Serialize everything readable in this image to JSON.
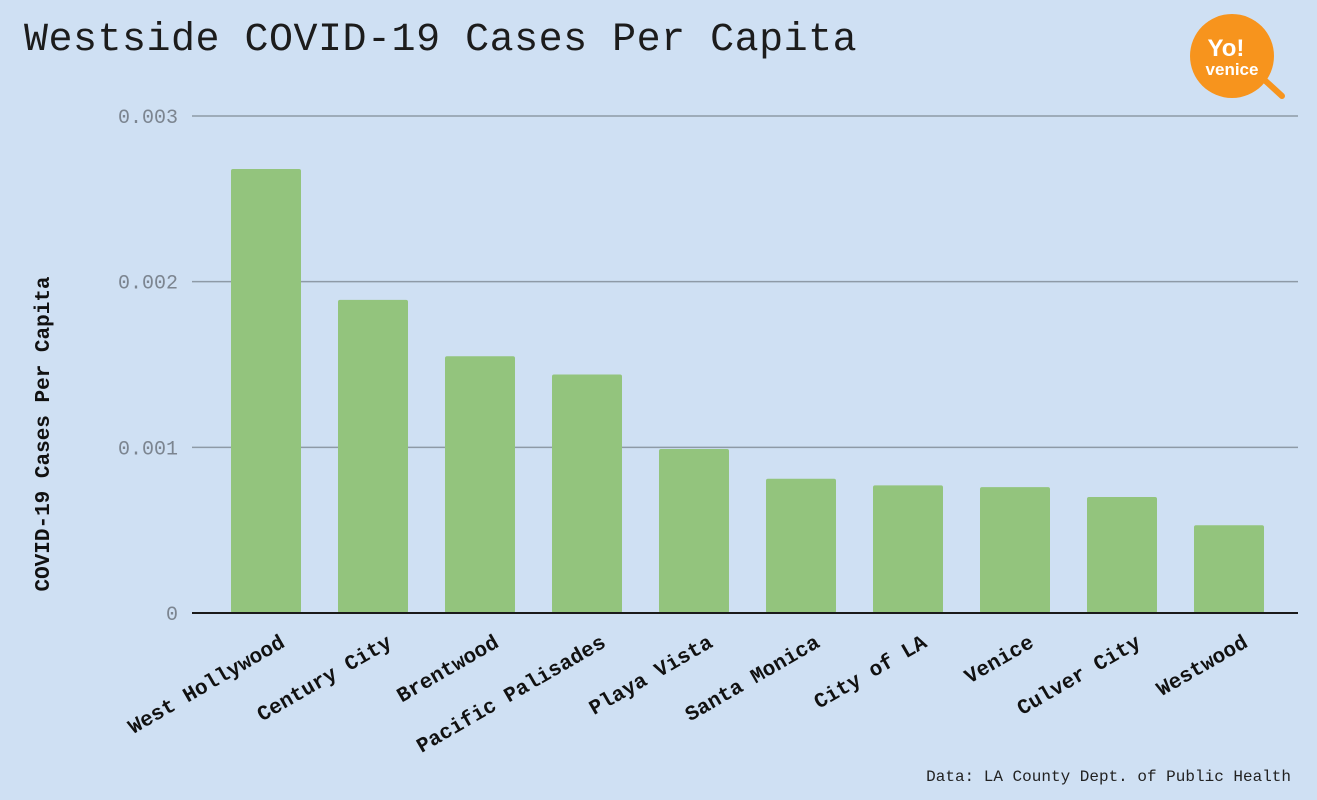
{
  "chart_data": {
    "type": "bar",
    "title": "Westside COVID-19 Cases Per Capita",
    "xlabel": "",
    "ylabel": "COVID-19 Cases Per Capita",
    "categories": [
      "West Hollywood",
      "Century City",
      "Brentwood",
      "Pacific Palisades",
      "Playa Vista",
      "Santa Monica",
      "City of LA",
      "Venice",
      "Culver City",
      "Westwood"
    ],
    "values": [
      0.00268,
      0.00189,
      0.00155,
      0.00144,
      0.00099,
      0.00081,
      0.00077,
      0.00076,
      0.0007,
      0.00053
    ],
    "ylim": [
      0,
      0.003
    ],
    "yticks": [
      "0",
      "0.001",
      "0.002",
      "0.003"
    ],
    "grid": true,
    "bar_color": "#93c47d"
  },
  "logo": {
    "line1": "Yo!",
    "line2": "venice",
    "color": "#f7941d"
  },
  "source": "Data: LA County Dept. of Public Health"
}
